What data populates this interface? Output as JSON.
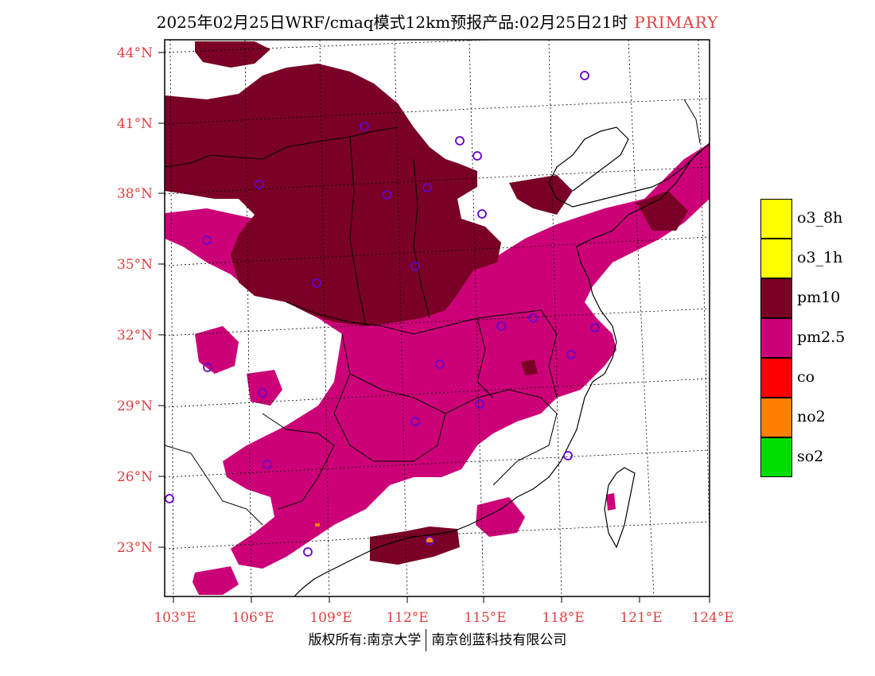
{
  "title": "2025年02月25日WRF/cmaq模式12km预报产品:02月25日21时",
  "title_tag": "PRIMARY",
  "lat_ticks": [
    "44°N",
    "41°N",
    "38°N",
    "35°N",
    "32°N",
    "29°N",
    "26°N",
    "23°N"
  ],
  "lon_ticks": [
    "103°E",
    "106°E",
    "109°E",
    "112°E",
    "115°E",
    "118°E",
    "121°E",
    "124°E"
  ],
  "legend": [
    {
      "label": "o3_8h",
      "color": "#ffff00"
    },
    {
      "label": "o3_1h",
      "color": "#ffff00"
    },
    {
      "label": "pm10",
      "color": "#7a0026"
    },
    {
      "label": "pm2.5",
      "color": "#cc0077"
    },
    {
      "label": "co",
      "color": "#ff0000"
    },
    {
      "label": "no2",
      "color": "#ff8000"
    },
    {
      "label": "so2",
      "color": "#00dd00"
    }
  ],
  "footer": {
    "left": "版权所有:南京大学",
    "right": "南京创蓝科技有限公司"
  }
}
